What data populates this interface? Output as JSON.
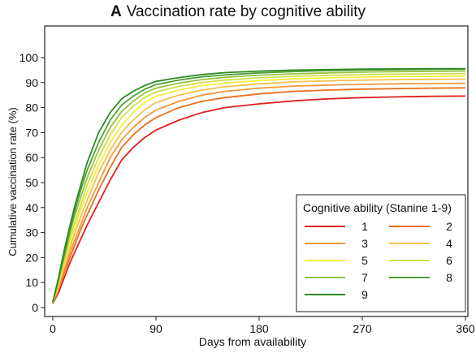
{
  "chart_data": {
    "type": "line",
    "title_prefix": "A",
    "title": "Vaccination rate by cognitive ability",
    "xlabel": "Days from availability",
    "ylabel": "Cumulative vaccination rate (%)",
    "xlim": [
      0,
      360
    ],
    "ylim": [
      0,
      100
    ],
    "xticks": [
      0,
      90,
      180,
      270,
      360
    ],
    "yticks": [
      0,
      10,
      20,
      30,
      40,
      50,
      60,
      70,
      80,
      90,
      100
    ],
    "grid": false,
    "legend_title": "Cognitive ability (Stanine 1-9)",
    "legend_position": "bottom-right",
    "x": [
      0,
      5,
      10,
      15,
      20,
      25,
      30,
      40,
      50,
      60,
      70,
      80,
      90,
      110,
      130,
      150,
      180,
      210,
      240,
      270,
      300,
      330,
      360
    ],
    "series": [
      {
        "name": "1",
        "color": "#e02020",
        "values": [
          1.5,
          6,
          12,
          18,
          23,
          28,
          33,
          42,
          51,
          59,
          64,
          68,
          71,
          75,
          78,
          80,
          81.5,
          82.7,
          83.5,
          84,
          84.3,
          84.5,
          84.6
        ]
      },
      {
        "name": "2",
        "color": "#e8701c",
        "values": [
          1.6,
          7,
          14,
          20,
          26,
          32,
          37,
          47,
          56,
          64,
          69,
          73,
          76,
          80,
          82.5,
          84,
          85.5,
          86.5,
          87,
          87.4,
          87.6,
          87.8,
          87.9
        ]
      },
      {
        "name": "3",
        "color": "#f2993a",
        "values": [
          1.7,
          8,
          15,
          22,
          28,
          34,
          40,
          50,
          60,
          67,
          72,
          76,
          79,
          82.5,
          85,
          86.5,
          87.8,
          88.6,
          89,
          89.3,
          89.5,
          89.6,
          89.7
        ]
      },
      {
        "name": "4",
        "color": "#f7c04a",
        "values": [
          1.8,
          9,
          17,
          24,
          31,
          37,
          43,
          54,
          63,
          70,
          75,
          79,
          82,
          85,
          87,
          88.3,
          89.5,
          90.3,
          90.7,
          91,
          91.2,
          91.3,
          91.4
        ]
      },
      {
        "name": "5",
        "color": "#f6ee3a",
        "values": [
          1.9,
          9.5,
          18,
          26,
          33,
          40,
          46,
          57,
          66,
          73,
          78,
          82,
          84.5,
          87,
          88.8,
          89.8,
          90.8,
          91.5,
          91.9,
          92.2,
          92.4,
          92.5,
          92.6
        ]
      },
      {
        "name": "6",
        "color": "#cfe04a",
        "values": [
          2,
          10,
          19,
          28,
          35,
          42,
          49,
          60,
          69,
          76,
          80.5,
          84,
          86.3,
          88.5,
          90,
          91,
          91.9,
          92.5,
          92.9,
          93.2,
          93.4,
          93.5,
          93.6
        ]
      },
      {
        "name": "7",
        "color": "#94c440",
        "values": [
          2,
          11,
          20,
          30,
          38,
          45,
          52,
          63,
          72,
          78.5,
          82.5,
          85.8,
          87.8,
          89.8,
          91.2,
          92.1,
          93,
          93.5,
          93.9,
          94.2,
          94.4,
          94.5,
          94.6
        ]
      },
      {
        "name": "8",
        "color": "#4fa03a",
        "values": [
          2.1,
          11.5,
          21,
          31,
          40,
          48,
          55,
          66,
          75,
          81,
          84.5,
          87.3,
          89.2,
          91,
          92.3,
          93.1,
          93.9,
          94.4,
          94.8,
          95,
          95.2,
          95.3,
          95.4
        ]
      },
      {
        "name": "9",
        "color": "#2e8b22",
        "values": [
          2.2,
          12,
          23,
          33,
          42,
          50,
          58,
          70,
          78,
          83.5,
          86.5,
          88.8,
          90.5,
          92,
          93.2,
          94,
          94.6,
          95,
          95.2,
          95.4,
          95.5,
          95.6,
          95.6
        ]
      }
    ]
  }
}
